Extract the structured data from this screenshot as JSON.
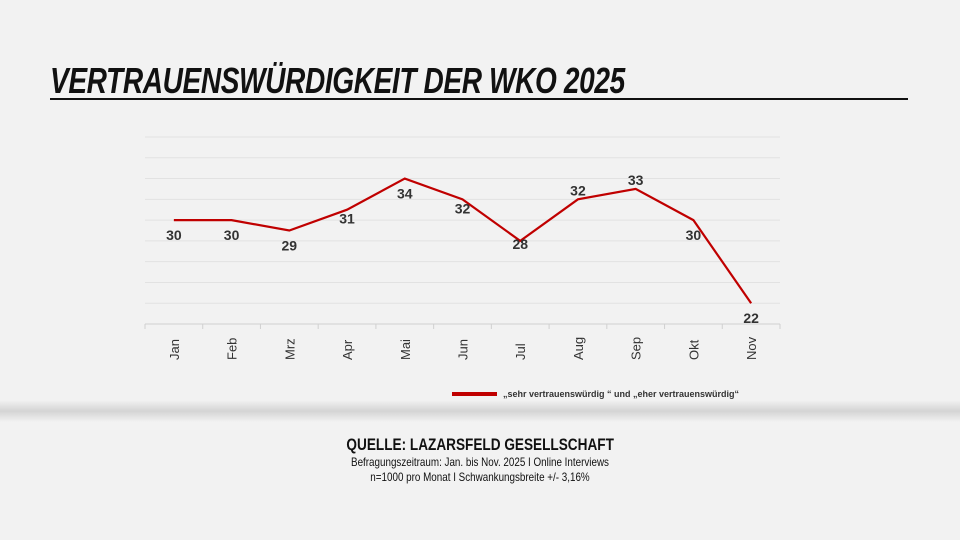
{
  "title": "VERTRAUENSWÜRDIGKEIT DER WKO 2025",
  "chart_data": {
    "type": "line",
    "categories": [
      "Jan",
      "Feb",
      "Mrz",
      "Apr",
      "Mai",
      "Jun",
      "Jul",
      "Aug",
      "Sep",
      "Okt",
      "Nov"
    ],
    "series": [
      {
        "name": "„sehr vertrauenswürdig “ und „eher vertrauenswürdig“",
        "values": [
          30,
          30,
          29,
          31,
          34,
          32,
          28,
          32,
          33,
          30,
          22
        ],
        "color": "#c00000"
      }
    ],
    "ylim": [
      20,
      38
    ],
    "grid": true,
    "legend_position": "bottom-right",
    "data_labels": true
  },
  "source": {
    "heading": "QUELLE: LAZARSFELD GESELLSCHAFT",
    "line1": "Befragungszeitraum: Jan. bis Nov. 2025 I Online Interviews",
    "line2": "n=1000 pro Monat I Schwankungsbreite +/- 3,16%"
  }
}
